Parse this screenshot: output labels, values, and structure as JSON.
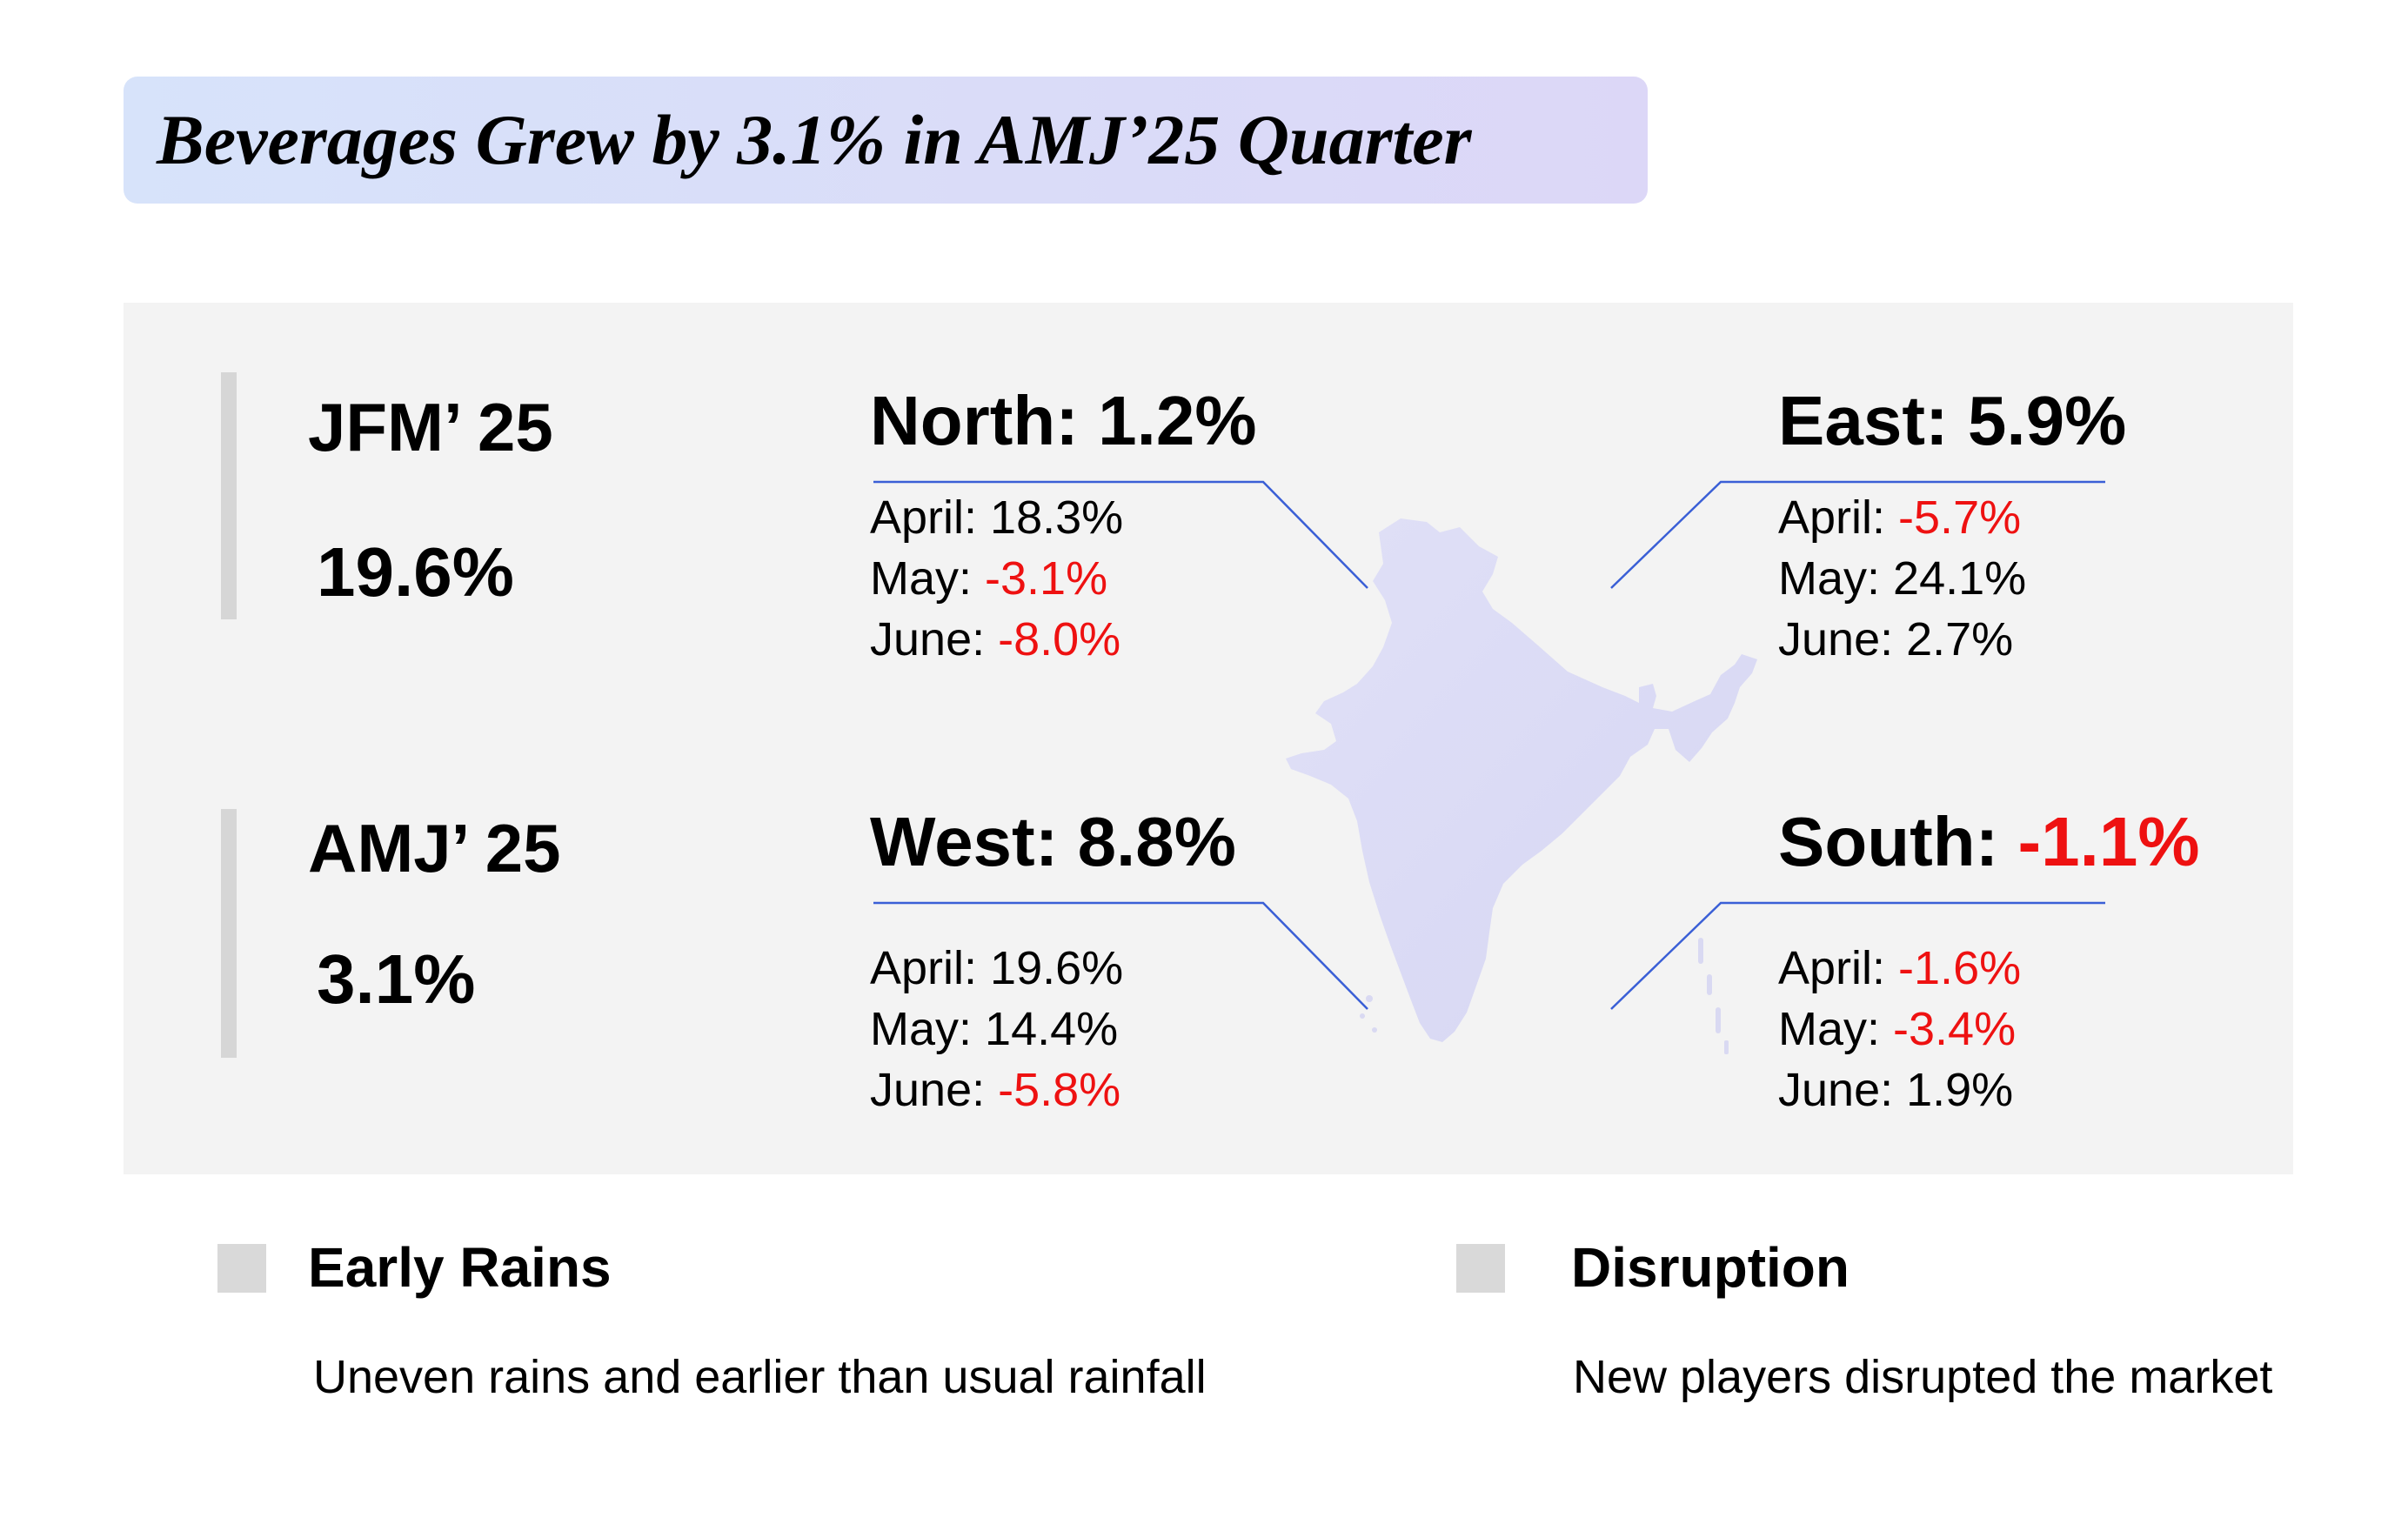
{
  "title": "Beverages Grew by 3.1% in AMJ’25 Quarter",
  "quarters": [
    {
      "label": "JFM’ 25",
      "value": "19.6%"
    },
    {
      "label": "AMJ’ 25",
      "value": "3.1%"
    }
  ],
  "regions": {
    "north": {
      "name": "North: ",
      "total": "1.2%",
      "total_negative": false,
      "months": [
        {
          "month": "April: ",
          "value": "18.3%",
          "negative": false
        },
        {
          "month": "May: ",
          "value": "-3.1%",
          "negative": true
        },
        {
          "month": "June: ",
          "value": "-8.0%",
          "negative": true
        }
      ]
    },
    "east": {
      "name": "East: ",
      "total": "5.9%",
      "total_negative": false,
      "months": [
        {
          "month": "April: ",
          "value": "-5.7%",
          "negative": true
        },
        {
          "month": "May: ",
          "value": "24.1%",
          "negative": false
        },
        {
          "month": "June: ",
          "value": "2.7%",
          "negative": false
        }
      ]
    },
    "west": {
      "name": "West: ",
      "total": "8.8%",
      "total_negative": false,
      "months": [
        {
          "month": "April: ",
          "value": "19.6%",
          "negative": false
        },
        {
          "month": "May: ",
          "value": "14.4%",
          "negative": false
        },
        {
          "month": "June: ",
          "value": "-5.8%",
          "negative": true
        }
      ]
    },
    "south": {
      "name": "South: ",
      "total": "-1.1%",
      "total_negative": true,
      "months": [
        {
          "month": "April: ",
          "value": "-1.6%",
          "negative": true
        },
        {
          "month": "May: ",
          "value": "-3.4%",
          "negative": true
        },
        {
          "month": "June: ",
          "value": "1.9%",
          "negative": false
        }
      ]
    }
  },
  "factors": [
    {
      "heading": "Early Rains",
      "body": "Uneven rains and earlier than usual rainfall"
    },
    {
      "heading": "Disruption",
      "body": "New players disrupted the market"
    }
  ],
  "colors": {
    "banner_start": "#d7e3fa",
    "banner_end": "#dcd7f7",
    "panel": "#f3f3f3",
    "negative": "#ee1111",
    "connector": "#3a5fd6",
    "map_fill": "#dcdcf5"
  },
  "icons": {
    "map": "india-map-icon"
  }
}
